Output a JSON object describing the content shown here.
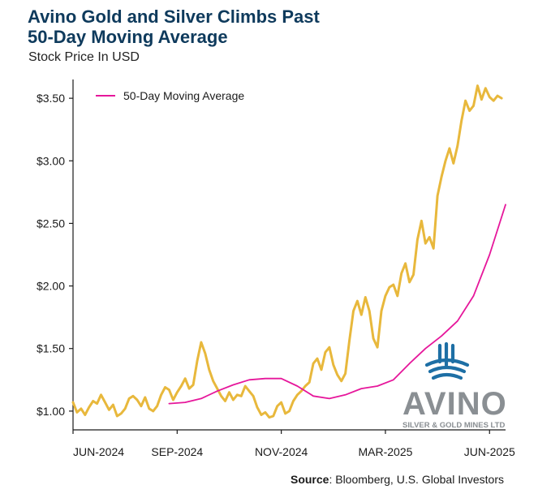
{
  "title_line1": "Avino Gold and Silver Climbs Past",
  "title_line2": "50-Day Moving Average",
  "subtitle": "Stock Price In USD",
  "source_label": "Source",
  "source_text": ": Bloomberg, U.S. Global Investors",
  "logo": {
    "name": "AVINO",
    "tagline": "SILVER & GOLD MINES LTD",
    "icon": "avino-wave-logo-icon"
  },
  "colors": {
    "price": "#e8b83c",
    "ma": "#e6179b",
    "title": "#0e3a5c",
    "logo_blue": "#1d6fa5",
    "logo_gray": "#8a8f93"
  },
  "chart_data": {
    "type": "line",
    "title": "Avino Gold and Silver Climbs Past 50-Day Moving Average",
    "ylabel": "Stock Price In USD",
    "xlabel": "",
    "ylim": [
      0.85,
      3.65
    ],
    "yticks": [
      1.0,
      1.5,
      2.0,
      2.5,
      3.0,
      3.5
    ],
    "ytick_labels": [
      "$1.00",
      "$1.50",
      "$2.00",
      "$2.50",
      "$3.00",
      "$3.50"
    ],
    "x_tick_labels": [
      "JUN-2024",
      "SEP-2024",
      "NOV-2024",
      "MAR-2025",
      "JUN-2025"
    ],
    "x_tick_positions": [
      0,
      26,
      52,
      78,
      104
    ],
    "xlim": [
      0,
      108
    ],
    "legend": {
      "position": "top-left"
    },
    "grid": false,
    "series": [
      {
        "name": "",
        "role": "price",
        "x": [
          0,
          1,
          2,
          3,
          4,
          5,
          6,
          7,
          8,
          9,
          10,
          11,
          12,
          13,
          14,
          15,
          16,
          17,
          18,
          19,
          20,
          21,
          22,
          23,
          24,
          25,
          26,
          27,
          28,
          29,
          30,
          31,
          32,
          33,
          34,
          35,
          36,
          37,
          38,
          39,
          40,
          41,
          42,
          43,
          44,
          45,
          46,
          47,
          48,
          49,
          50,
          51,
          52,
          53,
          54,
          55,
          56,
          57,
          58,
          59,
          60,
          61,
          62,
          63,
          64,
          65,
          66,
          67,
          68,
          69,
          70,
          71,
          72,
          73,
          74,
          75,
          76,
          77,
          78,
          79,
          80,
          81,
          82,
          83,
          84,
          85,
          86,
          87,
          88,
          89,
          90,
          91,
          92,
          93,
          94,
          95,
          96,
          97,
          98,
          99,
          100,
          101,
          102,
          103,
          104,
          105,
          106,
          107
        ],
        "values": [
          1.07,
          0.99,
          1.02,
          0.97,
          1.03,
          1.08,
          1.06,
          1.13,
          1.07,
          1.01,
          1.05,
          0.96,
          0.98,
          1.02,
          1.1,
          1.12,
          1.09,
          1.04,
          1.11,
          1.02,
          1.0,
          1.04,
          1.13,
          1.19,
          1.17,
          1.09,
          1.15,
          1.2,
          1.26,
          1.18,
          1.21,
          1.4,
          1.55,
          1.46,
          1.33,
          1.24,
          1.18,
          1.12,
          1.08,
          1.15,
          1.09,
          1.13,
          1.12,
          1.2,
          1.16,
          1.12,
          1.03,
          0.97,
          0.99,
          0.95,
          0.96,
          1.04,
          1.07,
          0.98,
          1.0,
          1.08,
          1.13,
          1.16,
          1.2,
          1.23,
          1.38,
          1.42,
          1.33,
          1.47,
          1.51,
          1.37,
          1.29,
          1.24,
          1.3,
          1.56,
          1.8,
          1.88,
          1.77,
          1.91,
          1.8,
          1.58,
          1.51,
          1.8,
          1.92,
          1.99,
          2.01,
          1.92,
          2.1,
          2.18,
          2.03,
          2.09,
          2.37,
          2.52,
          2.34,
          2.39,
          2.3,
          2.72,
          2.87,
          3.0,
          3.1,
          2.98,
          3.12,
          3.32,
          3.48,
          3.4,
          3.44,
          3.6,
          3.49,
          3.58,
          3.51,
          3.48,
          3.52,
          3.5
        ]
      },
      {
        "name": "50-Day Moving Average",
        "role": "moving_average",
        "x": [
          24,
          28,
          32,
          36,
          40,
          44,
          48,
          52,
          56,
          60,
          64,
          68,
          72,
          76,
          80,
          84,
          88,
          92,
          96,
          100,
          104,
          108
        ],
        "values": [
          1.06,
          1.07,
          1.1,
          1.16,
          1.21,
          1.25,
          1.26,
          1.26,
          1.2,
          1.12,
          1.1,
          1.13,
          1.18,
          1.2,
          1.25,
          1.38,
          1.5,
          1.6,
          1.72,
          1.92,
          2.25,
          2.65
        ]
      }
    ]
  }
}
